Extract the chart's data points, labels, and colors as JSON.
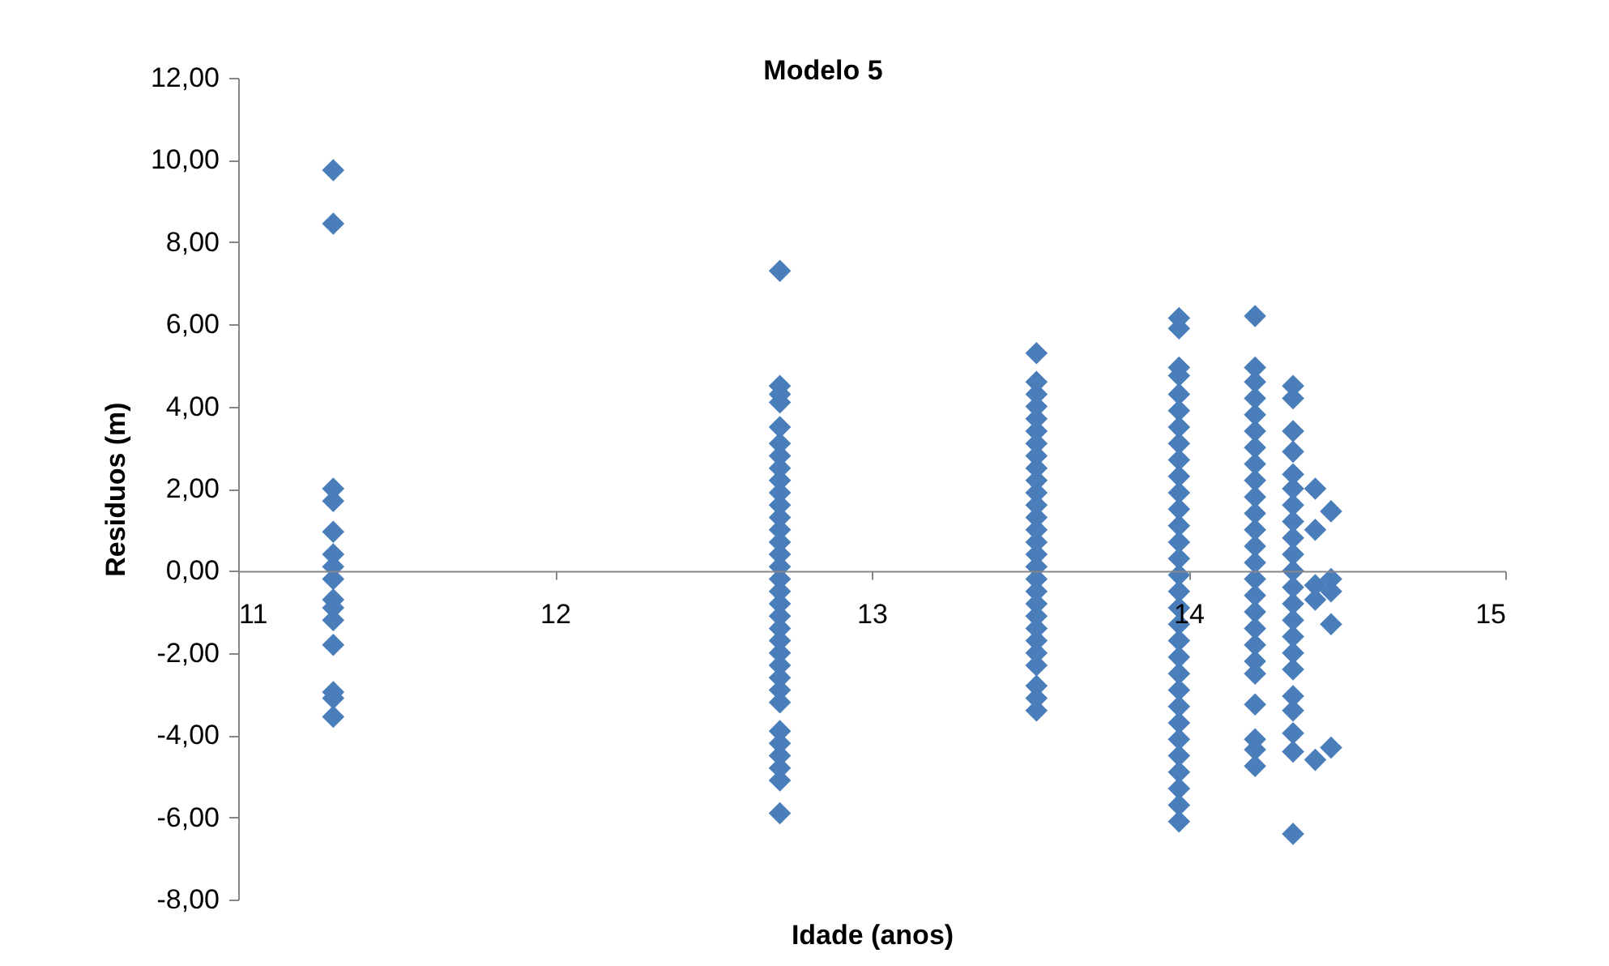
{
  "chart_data": {
    "type": "scatter",
    "title": "Modelo 5",
    "xlabel": "Idade (anos)",
    "ylabel": "Residuos (m)",
    "marker": "diamond",
    "grid": false,
    "legend": false,
    "xlim": [
      11,
      15
    ],
    "xticks": [
      11,
      12,
      13,
      14,
      15
    ],
    "ylim": [
      -8,
      12
    ],
    "yticks": [
      {
        "value": 12,
        "label": "12,00"
      },
      {
        "value": 10,
        "label": "10,00"
      },
      {
        "value": 8,
        "label": "8,00"
      },
      {
        "value": 6,
        "label": "6,00"
      },
      {
        "value": 4,
        "label": "4,00"
      },
      {
        "value": 2,
        "label": "2,00"
      },
      {
        "value": 0,
        "label": "0,00"
      },
      {
        "value": -2,
        "label": "-2,00"
      },
      {
        "value": -4,
        "label": "-4,00"
      },
      {
        "value": -6,
        "label": "-6,00"
      },
      {
        "value": -8,
        "label": "-8,00"
      }
    ],
    "series": [
      {
        "color": "#4a7ebb",
        "x": [
          11.3,
          11.3,
          11.3,
          11.3,
          11.3,
          11.3,
          11.3,
          11.3,
          11.3,
          11.3,
          11.3,
          11.3,
          11.3,
          11.3,
          11.3
        ],
        "values": [
          9.75,
          8.45,
          2.0,
          1.7,
          0.95,
          0.4,
          0.1,
          -0.2,
          -0.7,
          -0.9,
          -1.2,
          -1.8,
          -2.95,
          -3.1,
          -3.55
        ]
      },
      {
        "color": "#4a7ebb",
        "x": [
          12.71,
          12.71,
          12.71,
          12.71,
          12.71,
          12.71,
          12.71,
          12.71,
          12.71,
          12.71,
          12.71,
          12.71,
          12.71,
          12.71,
          12.71,
          12.71,
          12.71,
          12.71,
          12.71,
          12.71,
          12.71,
          12.71,
          12.71,
          12.71,
          12.71,
          12.71,
          12.71,
          12.71,
          12.71,
          12.71,
          12.71,
          12.71,
          12.71
        ],
        "values": [
          7.3,
          4.5,
          4.3,
          4.1,
          3.5,
          3.1,
          2.8,
          2.5,
          2.2,
          1.9,
          1.6,
          1.3,
          1.0,
          0.7,
          0.4,
          0.1,
          -0.2,
          -0.5,
          -0.8,
          -1.1,
          -1.4,
          -1.7,
          -2.0,
          -2.3,
          -2.6,
          -2.9,
          -3.2,
          -3.9,
          -4.2,
          -4.5,
          -4.8,
          -5.1,
          -5.9
        ]
      },
      {
        "color": "#4a7ebb",
        "x": [
          13.52,
          13.52,
          13.52,
          13.52,
          13.52,
          13.52,
          13.52,
          13.52,
          13.52,
          13.52,
          13.52,
          13.52,
          13.52,
          13.52,
          13.52,
          13.52,
          13.52,
          13.52,
          13.52,
          13.52,
          13.52,
          13.52,
          13.52,
          13.52,
          13.52,
          13.52,
          13.52,
          13.52
        ],
        "values": [
          5.3,
          4.6,
          4.3,
          4.0,
          3.7,
          3.4,
          3.1,
          2.8,
          2.5,
          2.2,
          1.9,
          1.6,
          1.3,
          1.0,
          0.7,
          0.4,
          0.1,
          -0.2,
          -0.5,
          -0.8,
          -1.1,
          -1.4,
          -1.7,
          -2.0,
          -2.3,
          -2.8,
          -3.1,
          -3.4
        ]
      },
      {
        "color": "#4a7ebb",
        "x": [
          13.97,
          13.97,
          13.97,
          13.97,
          13.97,
          13.97,
          13.97,
          13.97,
          13.97,
          13.97,
          13.97,
          13.97,
          13.97,
          13.97,
          13.97,
          13.97,
          13.97,
          13.97,
          13.97,
          13.97,
          13.97,
          13.97,
          13.97,
          13.97,
          13.97,
          13.97,
          13.97,
          13.97,
          13.97,
          13.97,
          13.97
        ],
        "values": [
          6.15,
          5.9,
          4.95,
          4.75,
          4.3,
          3.9,
          3.5,
          3.1,
          2.7,
          2.3,
          1.9,
          1.5,
          1.1,
          0.7,
          0.3,
          -0.1,
          -0.5,
          -0.9,
          -1.3,
          -1.7,
          -2.1,
          -2.5,
          -2.9,
          -3.3,
          -3.7,
          -4.1,
          -4.5,
          -4.9,
          -5.3,
          -5.7,
          -6.1
        ]
      },
      {
        "color": "#4a7ebb",
        "x": [
          14.21,
          14.21,
          14.21,
          14.21,
          14.21,
          14.21,
          14.21,
          14.21,
          14.21,
          14.21,
          14.21,
          14.21,
          14.21,
          14.21,
          14.21,
          14.21,
          14.21,
          14.21,
          14.21,
          14.21,
          14.21,
          14.21,
          14.21,
          14.21,
          14.21
        ],
        "values": [
          6.2,
          4.95,
          4.6,
          4.2,
          3.8,
          3.4,
          3.0,
          2.6,
          2.2,
          1.8,
          1.4,
          1.0,
          0.6,
          0.2,
          -0.2,
          -0.6,
          -1.0,
          -1.4,
          -1.8,
          -2.2,
          -2.5,
          -3.25,
          -4.1,
          -4.35,
          -4.75
        ]
      },
      {
        "color": "#4a7ebb",
        "x": [
          14.33,
          14.33,
          14.33,
          14.33,
          14.33,
          14.33,
          14.33,
          14.33,
          14.33,
          14.33,
          14.33,
          14.33,
          14.33,
          14.33,
          14.33,
          14.33,
          14.33,
          14.33,
          14.33,
          14.33,
          14.33,
          14.33
        ],
        "values": [
          4.5,
          4.2,
          3.4,
          2.9,
          2.35,
          2.0,
          1.6,
          1.2,
          0.8,
          0.4,
          0.0,
          -0.4,
          -0.8,
          -1.2,
          -1.6,
          -2.0,
          -2.4,
          -3.05,
          -3.4,
          -3.95,
          -4.4,
          -6.4
        ]
      },
      {
        "color": "#4a7ebb",
        "x": [
          14.4,
          14.4,
          14.4,
          14.4,
          14.4
        ],
        "values": [
          2.0,
          1.0,
          -0.35,
          -0.7,
          -4.6
        ]
      },
      {
        "color": "#4a7ebb",
        "x": [
          14.45,
          14.45,
          14.45,
          14.45,
          14.45
        ],
        "values": [
          1.45,
          -0.2,
          -0.5,
          -1.3,
          -4.3
        ]
      }
    ]
  }
}
